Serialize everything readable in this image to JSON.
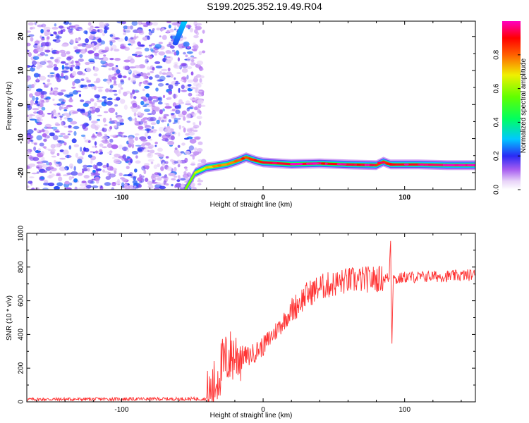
{
  "title": "S199.2025.352.19.49.R04",
  "chart_data": [
    {
      "type": "heatmap",
      "xlabel": "Height of straight line (km)",
      "ylabel": "Frequency (Hz)",
      "xlim": [
        -167,
        150
      ],
      "ylim": [
        -25,
        24.5
      ],
      "x_ticks": [
        -100,
        0,
        100
      ],
      "y_ticks": [
        20,
        10,
        0,
        -10,
        -20
      ],
      "colorbar": {
        "label": "Normalized spectral amplitude",
        "range": [
          0,
          1
        ],
        "ticks": [
          "0.0",
          "0.2",
          "0.4",
          "0.6",
          "0.8"
        ],
        "tick_values": [
          0.0,
          0.2,
          0.4,
          0.6,
          0.8
        ]
      },
      "ridge": {
        "x": [
          -55,
          -48,
          -40,
          -32,
          -25,
          -18,
          -12,
          -5,
          0,
          20,
          40,
          60,
          80,
          85,
          90,
          110,
          130,
          150
        ],
        "y": [
          -25,
          -20,
          -18.5,
          -18,
          -17.5,
          -16.5,
          -15.5,
          -16.5,
          -17,
          -17.5,
          -17.3,
          -17.6,
          -17.8,
          -16.8,
          -17.6,
          -17.6,
          -17.8,
          -17.8
        ],
        "amplitude": [
          0.55,
          0.6,
          0.7,
          0.75,
          0.75,
          0.8,
          0.85,
          0.85,
          0.9,
          0.95,
          0.9,
          0.92,
          0.9,
          0.8,
          0.9,
          0.95,
          0.97,
          0.98
        ]
      },
      "noise_region_xlim": [
        -167,
        -50
      ]
    },
    {
      "type": "line",
      "xlabel": "Height of straight line (km)",
      "ylabel": "SNR (10 * v/v)",
      "xlim": [
        -167,
        150
      ],
      "ylim": [
        0,
        1000
      ],
      "x_ticks": [
        -100,
        0,
        100
      ],
      "y_ticks": [
        0,
        200,
        400,
        600,
        800,
        1000
      ],
      "color": "#ff3333",
      "trend": {
        "x": [
          -167,
          -40,
          -35,
          -30,
          -25,
          -20,
          -10,
          0,
          10,
          20,
          30,
          40,
          50,
          60,
          70,
          80,
          88,
          92,
          100,
          110,
          120,
          130,
          140,
          150
        ],
        "y": [
          15,
          18,
          80,
          200,
          260,
          280,
          270,
          330,
          430,
          540,
          630,
          680,
          700,
          720,
          725,
          730,
          735,
          720,
          740,
          740,
          745,
          745,
          750,
          755
        ]
      },
      "spike": {
        "x": [
          89,
          90,
          91,
          92,
          93
        ],
        "y": [
          700,
          1000,
          330,
          780,
          720
        ]
      }
    }
  ]
}
